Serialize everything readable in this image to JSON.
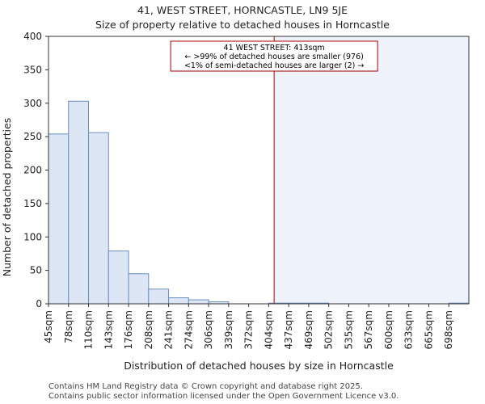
{
  "chart_data": {
    "type": "bar",
    "title": "41, WEST STREET, HORNCASTLE, LN9 5JE",
    "subtitle": "Size of property relative to detached houses in Horncastle",
    "xlabel": "Distribution of detached houses by size in Horncastle",
    "ylabel": "Number of detached properties",
    "categories": [
      "45sqm",
      "78sqm",
      "110sqm",
      "143sqm",
      "176sqm",
      "208sqm",
      "241sqm",
      "274sqm",
      "306sqm",
      "339sqm",
      "372sqm",
      "404sqm",
      "437sqm",
      "469sqm",
      "502sqm",
      "535sqm",
      "567sqm",
      "600sqm",
      "633sqm",
      "665sqm",
      "698sqm"
    ],
    "values": [
      254,
      303,
      256,
      79,
      45,
      22,
      9,
      6,
      3,
      0,
      0,
      1,
      1,
      1,
      0,
      0,
      0,
      0,
      0,
      0,
      1
    ],
    "ylim": [
      0,
      400
    ],
    "yticks": [
      0,
      50,
      100,
      150,
      200,
      250,
      300,
      350,
      400
    ],
    "bar_color": "#dce6f4",
    "bar_edge_color": "#6c8ebf",
    "marker": {
      "value_sqm": 413,
      "color": "#aa0000",
      "lines": [
        "41 WEST STREET: 413sqm",
        "← >99% of detached houses are smaller (976)",
        "<1% of semi-detached houses are larger (2) →"
      ]
    }
  },
  "footer": {
    "line1": "Contains HM Land Registry data © Crown copyright and database right 2025.",
    "line2": "Contains public sector information licensed under the Open Government Licence v3.0."
  }
}
